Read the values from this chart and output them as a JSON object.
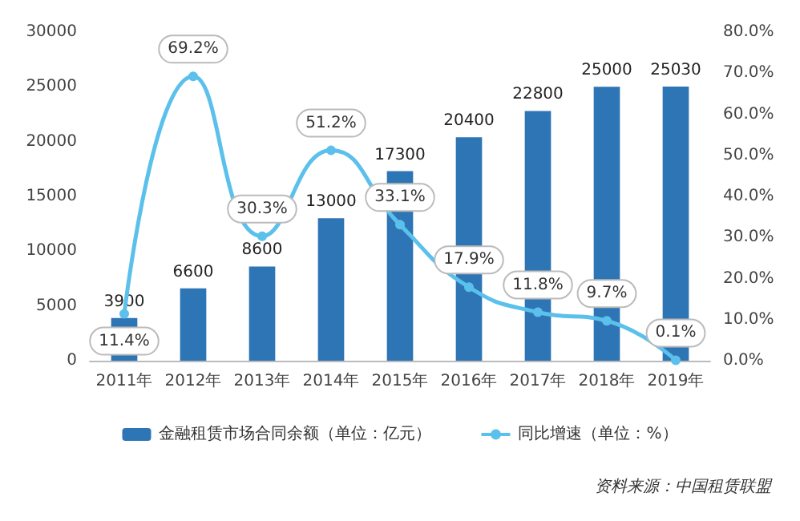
{
  "chart_data": {
    "type": "bar",
    "categories": [
      "2011年",
      "2012年",
      "2013年",
      "2014年",
      "2015年",
      "2016年",
      "2017年",
      "2018年",
      "2019年"
    ],
    "series": [
      {
        "name": "金融租赁市场合同余额（单位：亿元）",
        "color": "#2e75b6",
        "values": [
          3900,
          6600,
          8600,
          13000,
          17300,
          20400,
          22800,
          25000,
          25030
        ],
        "value_labels": [
          "3900",
          "6600",
          "8600",
          "13000",
          "17300",
          "20400",
          "22800",
          "25000",
          "25030"
        ]
      },
      {
        "name": "同比增速（单位：%）",
        "type": "line",
        "axis": "y2",
        "color": "#5bc0eb",
        "values": [
          11.4,
          69.2,
          30.3,
          51.2,
          33.1,
          17.9,
          11.8,
          9.7,
          0.1
        ],
        "value_labels": [
          "11.4%",
          "69.2%",
          "30.3%",
          "51.2%",
          "33.1%",
          "17.9%",
          "11.8%",
          "9.7%",
          "0.1%"
        ]
      }
    ],
    "ylim": [
      0,
      30000
    ],
    "yticks": [
      0,
      5000,
      10000,
      15000,
      20000,
      25000,
      30000
    ],
    "y2lim": [
      0,
      80
    ],
    "y2ticks": [
      {
        "value": 0,
        "label": "0.0%"
      },
      {
        "value": 10,
        "label": "10.0%"
      },
      {
        "value": 20,
        "label": "20.0%"
      },
      {
        "value": 30,
        "label": "30.0%"
      },
      {
        "value": 40,
        "label": "40.0%"
      },
      {
        "value": 50,
        "label": "50.0%"
      },
      {
        "value": 60,
        "label": "60.0%"
      },
      {
        "value": 70,
        "label": "70.0%"
      },
      {
        "value": 80,
        "label": "80.0%"
      }
    ],
    "legend": "bottom",
    "marker": "circle",
    "grid": false,
    "annotations": [
      "资料来源：中国租赁联盟"
    ]
  }
}
